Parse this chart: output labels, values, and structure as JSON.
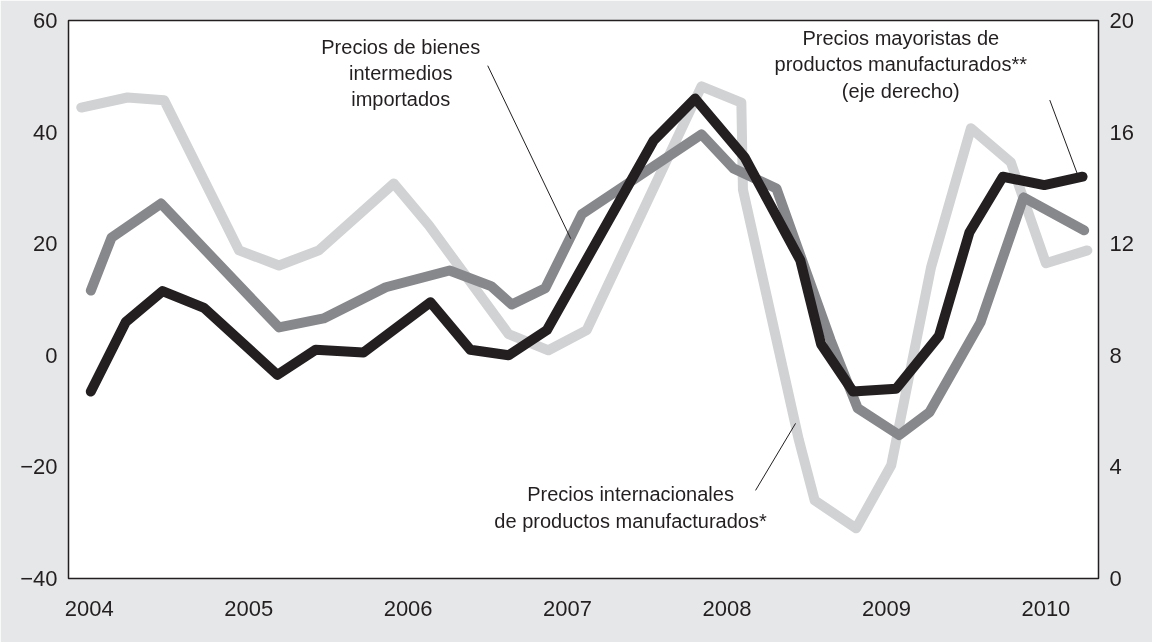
{
  "chart_data": {
    "type": "line",
    "xlim": [
      2003.87,
      2010.33
    ],
    "xticks": [
      2004,
      2005,
      2006,
      2007,
      2008,
      2009,
      2010
    ],
    "ylim": [
      -40,
      60
    ],
    "yticks": [
      -40,
      -20,
      0,
      20,
      40,
      60
    ],
    "y2lim": [
      0,
      20
    ],
    "y2ticks": [
      0,
      4,
      8,
      12,
      16,
      20
    ],
    "grid": false,
    "line_style": "solid",
    "series": [
      {
        "color": "#d1d2d4",
        "x": [
          2003.95,
          2004.24,
          2004.47,
          2004.94,
          2005.19,
          2005.44,
          2005.91,
          2006.13,
          2006.63,
          2006.88,
          2007.12,
          2007.84,
          2008.09,
          2008.1,
          2008.45,
          2008.55,
          2008.81,
          2009.03,
          2009.28,
          2009.53,
          2009.78,
          2010.0,
          2010.26
        ],
        "values": [
          44.4,
          46.2,
          45.7,
          18.8,
          16.1,
          18.8,
          30.8,
          23.3,
          3.8,
          0.9,
          4.5,
          48.2,
          45.3,
          29.7,
          -15.1,
          -26.0,
          -31.0,
          -19.7,
          15.8,
          40.7,
          34.6,
          16.5,
          18.8
        ]
      },
      {
        "color": "#87888c",
        "x": [
          2004.01,
          2004.14,
          2004.45,
          2005.19,
          2005.47,
          2005.86,
          2006.26,
          2006.52,
          2006.65,
          2006.86,
          2007.09,
          2007.84,
          2008.04,
          2008.31,
          2008.65,
          2008.82,
          2009.08,
          2009.27,
          2009.59,
          2009.86,
          2010.24
        ],
        "values": [
          11.6,
          21.1,
          27.2,
          5.0,
          6.6,
          12.2,
          15.2,
          12.4,
          9.1,
          12.0,
          25.3,
          39.6,
          33.5,
          29.9,
          2.7,
          -9.5,
          -14.3,
          -10.2,
          5.9,
          28.3,
          22.4
        ]
      },
      {
        "color": "#231f20",
        "axis": "y2",
        "x": [
          2004.01,
          2004.23,
          2004.46,
          2004.72,
          2005.18,
          2005.42,
          2005.72,
          2006.14,
          2006.39,
          2006.63,
          2006.87,
          2007.54,
          2007.8,
          2008.11,
          2008.46,
          2008.59,
          2008.79,
          2009.06,
          2009.33,
          2009.52,
          2009.73,
          2009.99,
          2010.23
        ],
        "values": [
          6.7,
          9.2,
          10.3,
          9.7,
          7.3,
          8.2,
          8.1,
          9.9,
          8.2,
          8.0,
          8.9,
          15.7,
          17.2,
          15.1,
          11.4,
          8.4,
          6.7,
          6.8,
          8.7,
          12.4,
          14.4,
          14.1,
          14.4
        ]
      }
    ],
    "annotations": [
      {
        "text": "Precios de bienes\nintermedios\nimportados",
        "x": 2007.02,
        "y": 20.9
      },
      {
        "text": "Precios mayoristas de\nproductos manufacturados**\n(eje derecho)",
        "x": 2010.2,
        "y": 32.3
      },
      {
        "text": "Precios internacionales\nde productos manufacturados*",
        "x": 2008.43,
        "y": -12.2
      }
    ]
  }
}
